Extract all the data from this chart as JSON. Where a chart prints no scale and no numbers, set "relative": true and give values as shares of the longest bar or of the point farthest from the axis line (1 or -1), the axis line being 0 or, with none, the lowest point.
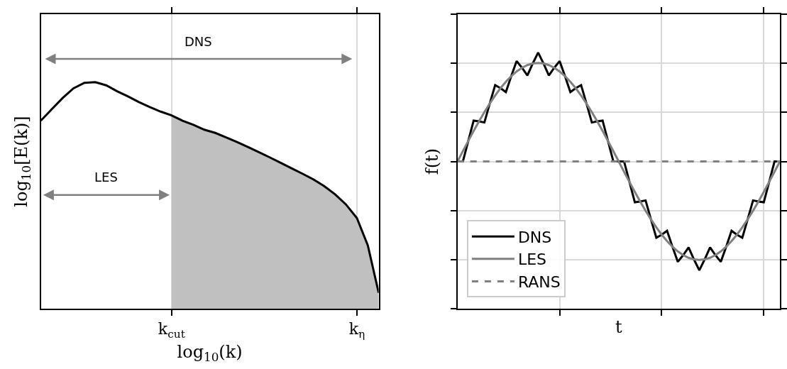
{
  "chart_data": [
    {
      "type": "line",
      "relative": true,
      "xlabel": "log$_{10}$(k)",
      "ylabel": "log$_{10}$[E(k)]",
      "categories": [
        null,
        null,
        null,
        null,
        null,
        null,
        null,
        null,
        null,
        null,
        null,
        null,
        "k$_{cut}$",
        null,
        null,
        null,
        null,
        null,
        null,
        null,
        null,
        null,
        null,
        null,
        null,
        null,
        null,
        null,
        null,
        "k$_{η}$",
        null,
        null
      ],
      "grid": "x",
      "tick_labels": "x",
      "annotations": [
        "DNS",
        "LES"
      ],
      "series": [
        {
          "type": "area",
          "color": "#c0c0c0",
          "values": [
            null,
            null,
            null,
            null,
            null,
            null,
            null,
            null,
            null,
            null,
            null,
            null,
            0.853,
            0.83,
            0.812,
            0.79,
            0.776,
            0.756,
            0.736,
            0.714,
            0.691,
            0.668,
            0.644,
            0.62,
            0.596,
            0.571,
            0.541,
            0.505,
            0.46,
            0.4,
            0.28,
            0.07
          ]
        },
        {
          "type": "line",
          "color": "#000000",
          "values": [
            0.83,
            0.88,
            0.93,
            0.973,
            0.997,
            1.0,
            0.986,
            0.96,
            0.937,
            0.912,
            0.89,
            0.87,
            0.853,
            0.83,
            0.812,
            0.79,
            0.776,
            0.756,
            0.736,
            0.714,
            0.691,
            0.668,
            0.644,
            0.62,
            0.596,
            0.571,
            0.541,
            0.505,
            0.46,
            0.4,
            0.28,
            0.07
          ]
        }
      ]
    },
    {
      "type": "line",
      "relative": true,
      "xlabel": "t",
      "ylabel": "f(t)",
      "categories": [
        null,
        null,
        null,
        null,
        null,
        null,
        null,
        null,
        null,
        null,
        null,
        null,
        null,
        null,
        null,
        null,
        null,
        null,
        null,
        null,
        null,
        null,
        null,
        null,
        null,
        null,
        null,
        null,
        null,
        null,
        null,
        null,
        null,
        null,
        null,
        null,
        null,
        null,
        null,
        null,
        null,
        null,
        null,
        null,
        null,
        null,
        null,
        null,
        null,
        null,
        null,
        null,
        null,
        null,
        null,
        null,
        null,
        null,
        null,
        null,
        null
      ],
      "grid": true,
      "tick_labels": false,
      "legend": "bottom left",
      "series": [
        {
          "name": "DNS",
          "color": "#000000",
          "values": [
            0,
            0,
            0.188,
            0.375,
            0.368,
            0.358,
            0.532,
            0.701,
            0.673,
            0.637,
            0.784,
            0.922,
            0.861,
            0.79,
            0.9,
            1.0,
            0.9,
            0.79,
            0.861,
            0.922,
            0.784,
            0.637,
            0.673,
            0.701,
            0.532,
            0.358,
            0.368,
            0.375,
            0.188,
            0,
            0,
            0,
            -0.188,
            -0.375,
            -0.368,
            -0.358,
            -0.532,
            -0.701,
            -0.673,
            -0.637,
            -0.784,
            -0.922,
            -0.861,
            -0.79,
            -0.9,
            -1.0,
            -0.9,
            -0.79,
            -0.861,
            -0.922,
            -0.784,
            -0.637,
            -0.673,
            -0.701,
            -0.532,
            -0.358,
            -0.368,
            -0.375,
            -0.188,
            0,
            0
          ]
        },
        {
          "name": "LES",
          "color": "#808080",
          "values": [
            0,
            0.095,
            0.188,
            0.28,
            0.368,
            0.453,
            0.532,
            0.606,
            0.673,
            0.732,
            0.784,
            0.827,
            0.861,
            0.885,
            0.9,
            0.905,
            0.9,
            0.885,
            0.861,
            0.827,
            0.784,
            0.732,
            0.673,
            0.606,
            0.532,
            0.453,
            0.368,
            0.28,
            0.188,
            0.095,
            0,
            -0.095,
            -0.188,
            -0.28,
            -0.368,
            -0.453,
            -0.532,
            -0.606,
            -0.673,
            -0.732,
            -0.784,
            -0.827,
            -0.861,
            -0.885,
            -0.9,
            -0.905,
            -0.9,
            -0.885,
            -0.861,
            -0.827,
            -0.784,
            -0.732,
            -0.673,
            -0.606,
            -0.532,
            -0.453,
            -0.368,
            -0.28,
            -0.188,
            -0.095,
            0
          ]
        },
        {
          "name": "RANS",
          "color": "#808080",
          "line_style": "dashed",
          "values": [
            0,
            0,
            0,
            0,
            0,
            0,
            0,
            0,
            0,
            0,
            0,
            0,
            0,
            0,
            0,
            0,
            0,
            0,
            0,
            0,
            0,
            0,
            0,
            0,
            0,
            0,
            0,
            0,
            0,
            0,
            0,
            0,
            0,
            0,
            0,
            0,
            0,
            0,
            0,
            0,
            0,
            0,
            0,
            0,
            0,
            0,
            0,
            0,
            0,
            0,
            0,
            0,
            0,
            0,
            0,
            0,
            0,
            0,
            0,
            0,
            0
          ]
        }
      ]
    }
  ]
}
